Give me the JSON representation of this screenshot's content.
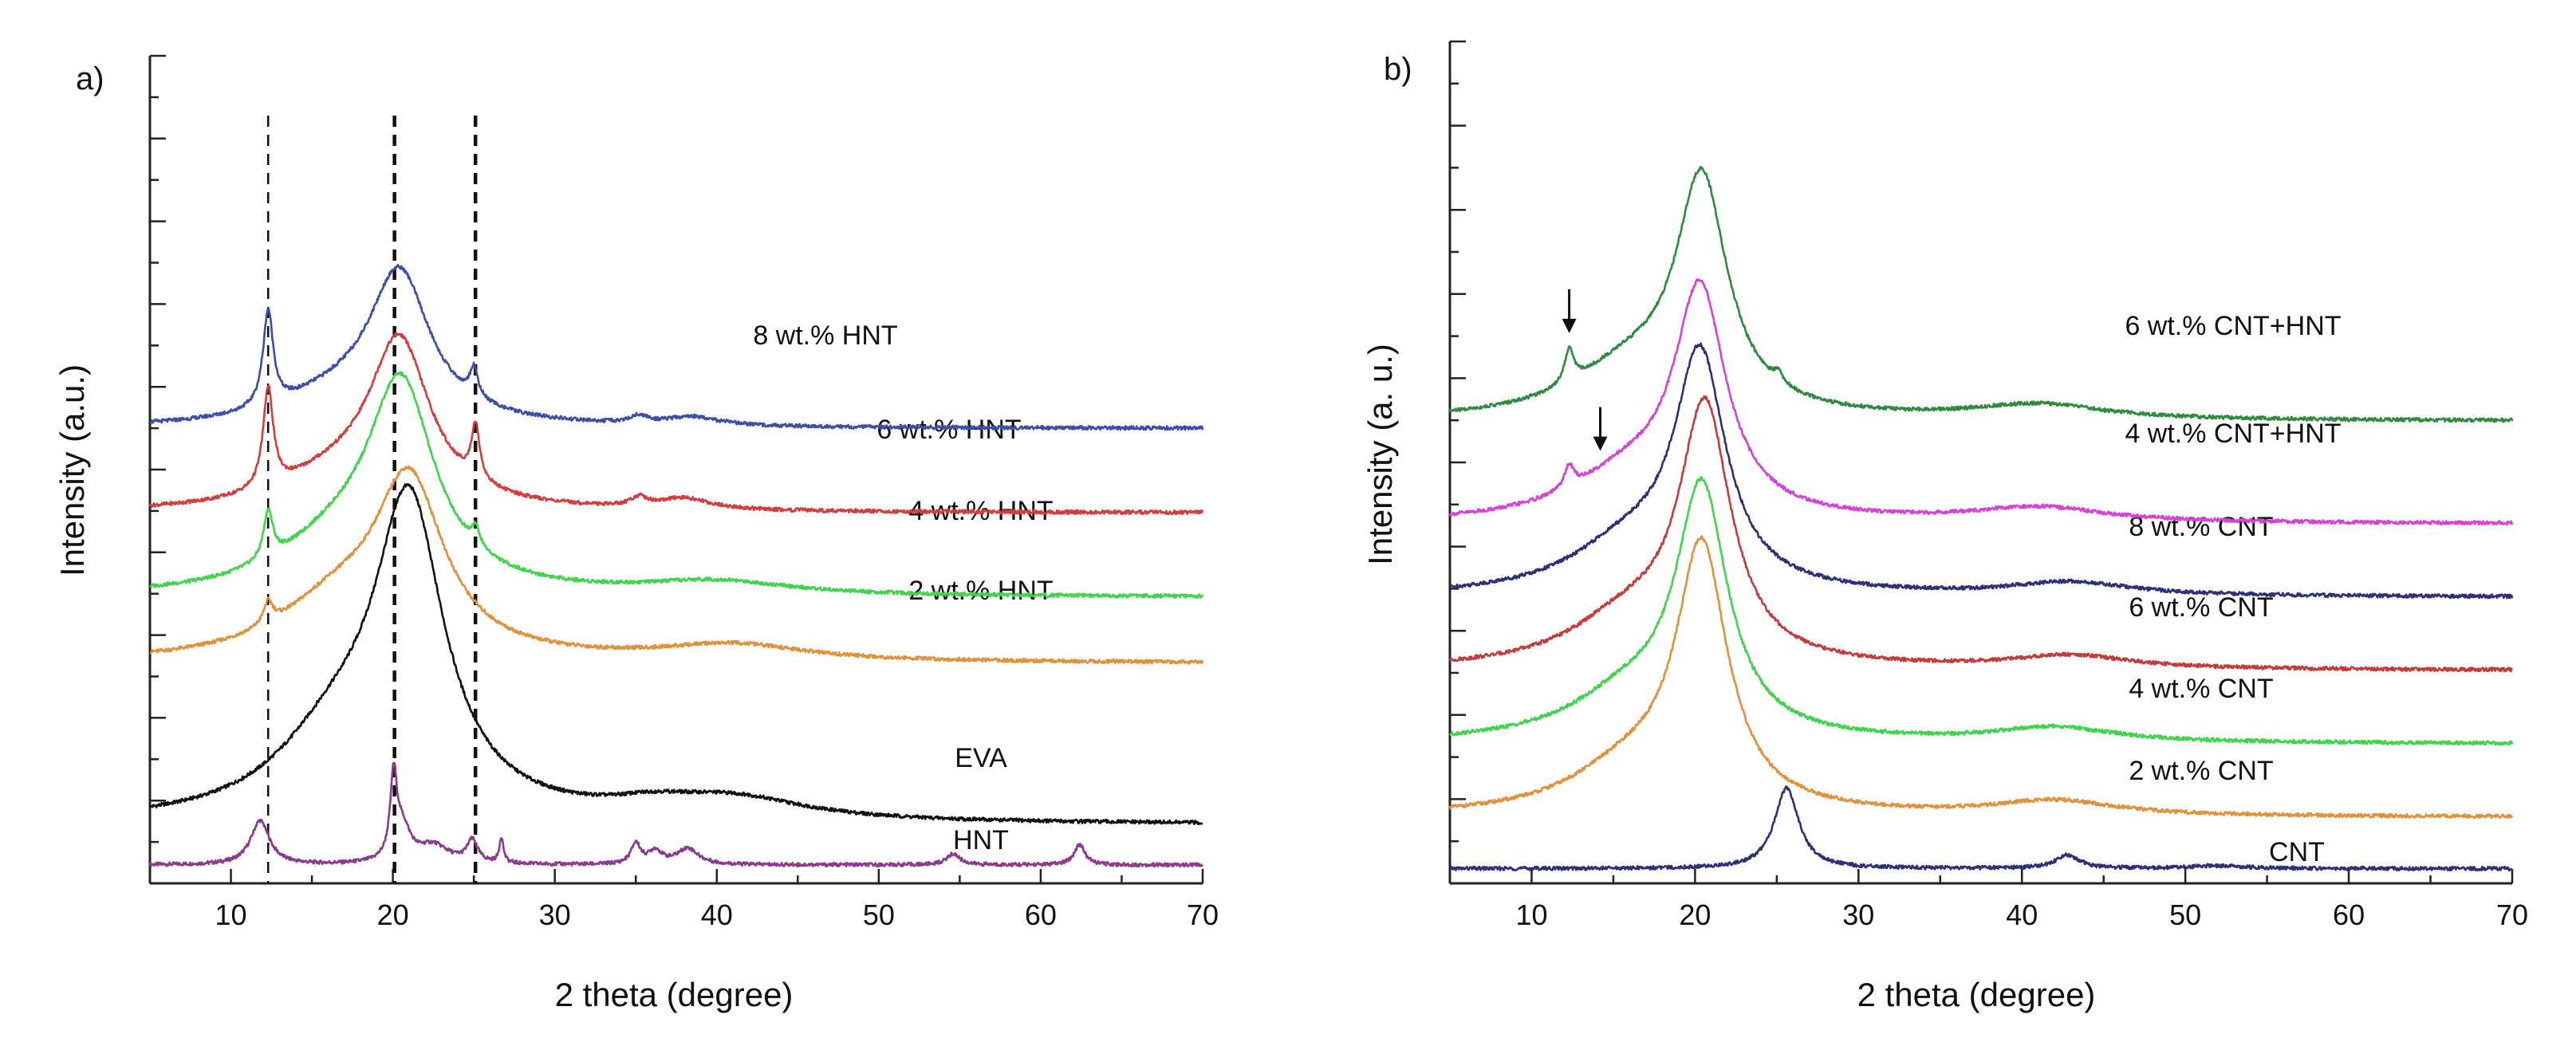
{
  "chart_data": [
    {
      "type": "line",
      "panel_label": "a)",
      "xlabel": "2 theta (degree)",
      "ylabel": "Intensity   (a.u.)",
      "xlim": [
        5,
        70
      ],
      "xticks": [
        10,
        20,
        30,
        40,
        50,
        60,
        70
      ],
      "ylim": [
        0,
        10
      ],
      "reference_lines": [
        12.3,
        20.1,
        25.1
      ],
      "series": [
        {
          "name": "HNT",
          "color": "#8b3a8f",
          "offset": 0.1,
          "base": 0.15,
          "peaks": [
            [
              11.8,
              0.6,
              0.7
            ],
            [
              20.05,
              1.1,
              0.25
            ],
            [
              20.6,
              0.45,
              0.6
            ],
            [
              22.5,
              0.25,
              1.2
            ],
            [
              24.9,
              0.3,
              0.4
            ],
            [
              26.7,
              0.35,
              0.15
            ],
            [
              35.0,
              0.28,
              0.35
            ],
            [
              36.2,
              0.18,
              0.5
            ],
            [
              38.2,
              0.22,
              0.8
            ],
            [
              54.6,
              0.15,
              0.5
            ],
            [
              62.4,
              0.28,
              0.4
            ]
          ]
        },
        {
          "name": "EVA",
          "color": "#111111",
          "offset": 0.8,
          "base": 0.0,
          "peaks": [
            [
              21.0,
              4.1,
              2.6
            ],
            [
              16.5,
              1.0,
              4.5
            ],
            [
              41.0,
              0.3,
              5.5
            ],
            [
              36.0,
              0.12,
              3.0
            ]
          ]
        },
        {
          "name": "2 wt.% HNT",
          "color": "#e0913a",
          "offset": 3.0,
          "base": 0.0,
          "peaks": [
            [
              12.3,
              0.3,
              0.35
            ],
            [
              21.0,
              2.3,
              2.6
            ],
            [
              16.5,
              0.7,
              4.5
            ],
            [
              41.0,
              0.22,
              5.5
            ]
          ]
        },
        {
          "name": "4 wt.% HNT",
          "color": "#3fd44b",
          "offset": 3.9,
          "base": 0.0,
          "peaks": [
            [
              12.3,
              0.65,
              0.35
            ],
            [
              20.5,
              2.7,
              2.5
            ],
            [
              25.1,
              0.25,
              0.3
            ],
            [
              16.5,
              0.6,
              4.5
            ],
            [
              40.0,
              0.18,
              5.5
            ]
          ]
        },
        {
          "name": "6 wt.% HNT",
          "color": "#d23d3d",
          "offset": 5.05,
          "base": 0.0,
          "peaks": [
            [
              12.3,
              1.35,
              0.38
            ],
            [
              20.4,
              2.2,
              2.3
            ],
            [
              25.1,
              0.75,
              0.3
            ],
            [
              16.5,
              0.4,
              4.5
            ],
            [
              35.2,
              0.12,
              0.6
            ],
            [
              38.0,
              0.15,
              2.0
            ]
          ]
        },
        {
          "name": "8 wt.% HNT",
          "color": "#3b4ea8",
          "offset": 6.2,
          "base": 0.0,
          "peaks": [
            [
              12.3,
              1.3,
              0.38
            ],
            [
              20.4,
              2.0,
              2.3
            ],
            [
              25.0,
              0.4,
              0.3
            ],
            [
              16.5,
              0.35,
              4.5
            ],
            [
              35.2,
              0.1,
              0.6
            ],
            [
              38.5,
              0.12,
              2.0
            ]
          ]
        }
      ]
    },
    {
      "type": "line",
      "panel_label": "b)",
      "xlabel": "2 theta (degree)",
      "ylabel": "Intensity (a. u.)",
      "xlim": [
        5,
        70
      ],
      "xticks": [
        10,
        20,
        30,
        40,
        50,
        60,
        70
      ],
      "ylim": [
        0,
        10
      ],
      "arrows": [
        {
          "x": 12.3,
          "series": "6 wt.% CNT+HNT"
        },
        {
          "x": 14.2,
          "series": "4 wt.% CNT+HNT"
        }
      ],
      "series": [
        {
          "name": "CNT",
          "color": "#2d2f78",
          "offset": 0.2,
          "base": 0.0,
          "peaks": [
            [
              25.6,
              1.1,
              0.9
            ],
            [
              42.8,
              0.18,
              0.9
            ],
            [
              52.0,
              0.04,
              2.0
            ]
          ]
        },
        {
          "name": "2 wt.% CNT",
          "color": "#e0913a",
          "offset": 0.9,
          "base": 0.0,
          "peaks": [
            [
              20.4,
              3.5,
              1.9
            ],
            [
              16.0,
              0.6,
              4.5
            ],
            [
              42.0,
              0.2,
              4.5
            ]
          ]
        },
        {
          "name": "4 wt.% CNT",
          "color": "#3fd44b",
          "offset": 1.9,
          "base": 0.0,
          "peaks": [
            [
              20.4,
              3.3,
              1.9
            ],
            [
              16.0,
              0.6,
              4.5
            ],
            [
              42.0,
              0.2,
              4.5
            ]
          ]
        },
        {
          "name": "6 wt.% CNT",
          "color": "#c43b3b",
          "offset": 2.9,
          "base": 0.0,
          "peaks": [
            [
              20.6,
              3.4,
              1.9
            ],
            [
              16.0,
              0.65,
              4.5
            ],
            [
              43.0,
              0.18,
              4.5
            ]
          ]
        },
        {
          "name": "8 wt.% CNT",
          "color": "#2d2f78",
          "offset": 3.9,
          "base": 0.0,
          "peaks": [
            [
              20.3,
              3.1,
              1.9
            ],
            [
              16.0,
              0.65,
              4.5
            ],
            [
              43.0,
              0.18,
              4.5
            ]
          ]
        },
        {
          "name": "4 wt.% CNT+HNT",
          "color": "#d642d6",
          "offset": 4.9,
          "base": 0.0,
          "peaks": [
            [
              12.3,
              0.3,
              0.35
            ],
            [
              20.3,
              3.0,
              1.9
            ],
            [
              16.0,
              0.6,
              4.5
            ],
            [
              41.0,
              0.2,
              5.0
            ]
          ]
        },
        {
          "name": "6 wt.% CNT+HNT",
          "color": "#2e8b3e",
          "offset": 6.3,
          "base": 0.0,
          "peaks": [
            [
              12.3,
              0.45,
              0.35
            ],
            [
              20.4,
              3.1,
              1.9
            ],
            [
              25.1,
              0.15,
              0.3
            ],
            [
              16.0,
              0.65,
              4.5
            ],
            [
              41.0,
              0.2,
              5.0
            ]
          ]
        }
      ]
    }
  ]
}
